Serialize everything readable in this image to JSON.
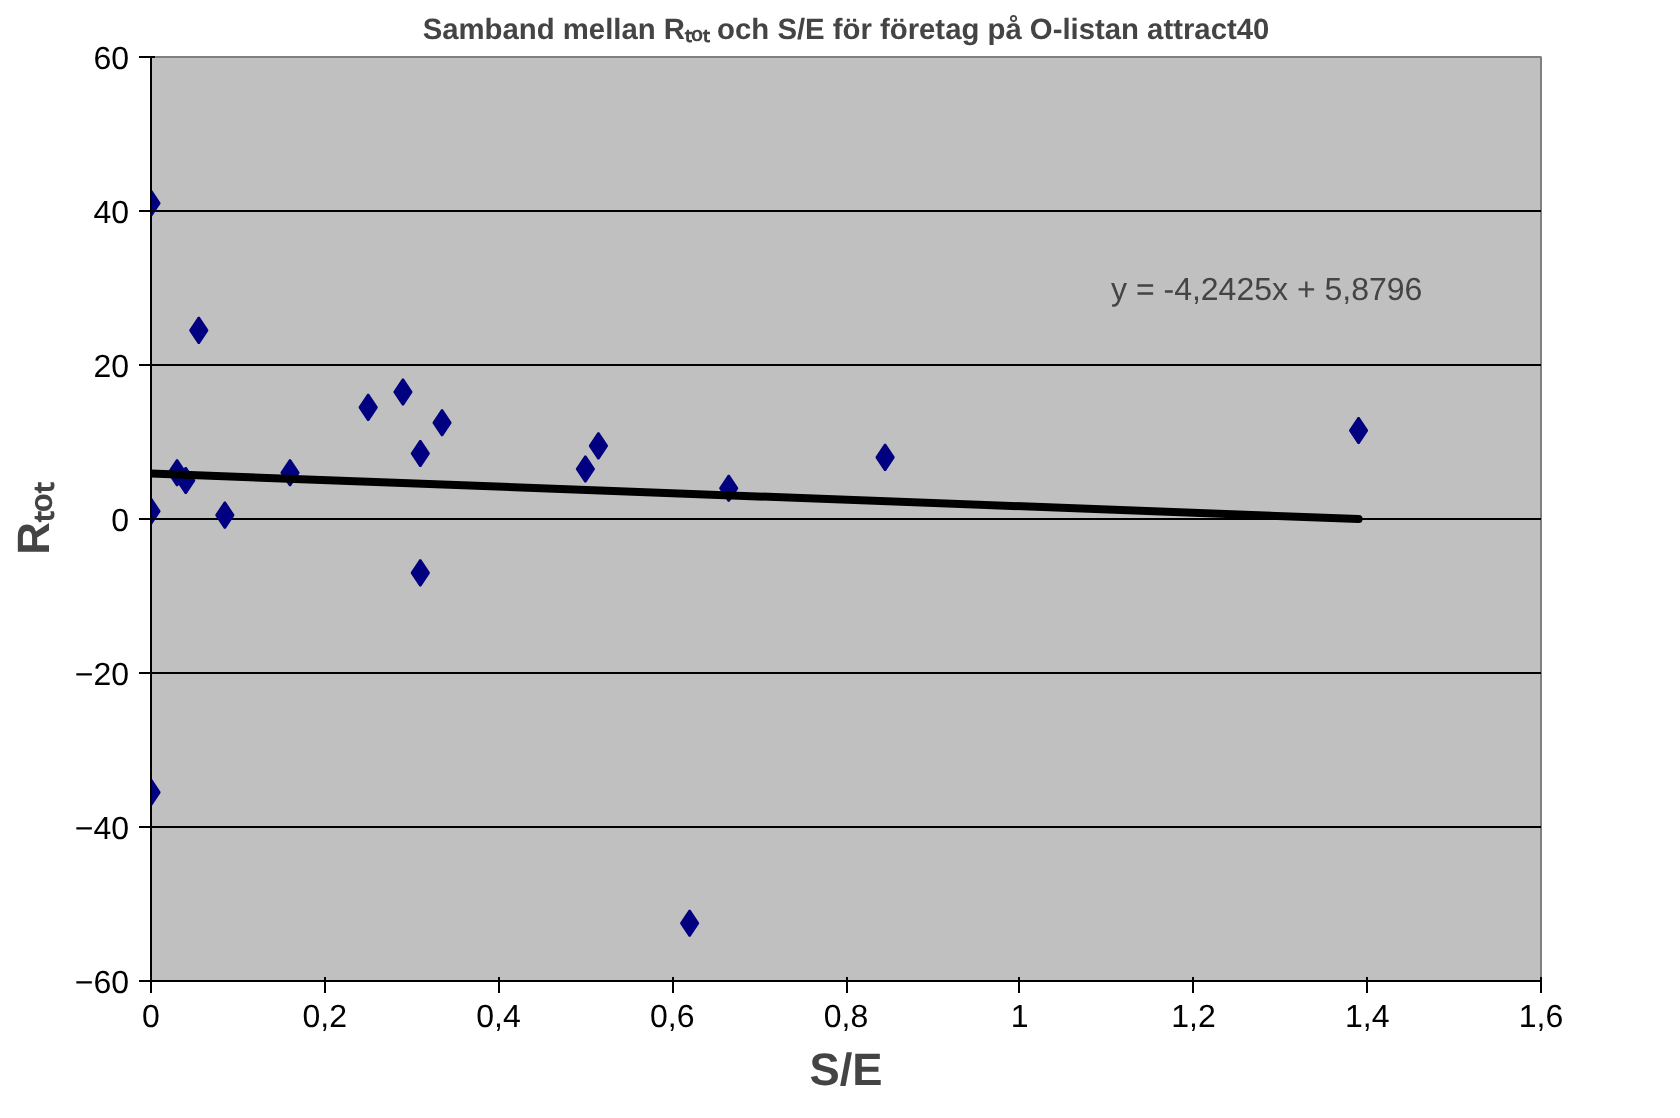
{
  "chart_data": {
    "type": "scatter",
    "title": "Samband mellan Rₜₒₜ och S/E för företag på O-listan attract40",
    "xlabel": "S/E",
    "ylabel": "Rₜₒₜ",
    "xlim": [
      0,
      1.6
    ],
    "xticks": [
      {
        "value": 0,
        "label": "0"
      },
      {
        "value": 0.2,
        "label": "0,2"
      },
      {
        "value": 0.4,
        "label": "0,4"
      },
      {
        "value": 0.6,
        "label": "0,6"
      },
      {
        "value": 0.8,
        "label": "0,8"
      },
      {
        "value": 1,
        "label": "1"
      },
      {
        "value": 1.2,
        "label": "1,2"
      },
      {
        "value": 1.4,
        "label": "1,4"
      },
      {
        "value": 1.6,
        "label": "1,6"
      }
    ],
    "ylim": [
      -60,
      60
    ],
    "yticks": [
      -60,
      -40,
      -20,
      0,
      20,
      40,
      60
    ],
    "grid": "y",
    "series": [
      {
        "marker": "diamond",
        "color": "#000080",
        "x": [
          0,
          0,
          0,
          0.03,
          0.04,
          0.055,
          0.085,
          0.16,
          0.25,
          0.29,
          0.31,
          0.31,
          0.335,
          0.5,
          0.515,
          0.62,
          0.665,
          0.845,
          1.39
        ],
        "values": [
          41,
          1,
          -35.5,
          6,
          5,
          24.5,
          0.5,
          6,
          14.5,
          16.5,
          8.5,
          -7,
          12.5,
          6.5,
          9.5,
          -52.5,
          4,
          8,
          11.5
        ]
      },
      {
        "type": "line",
        "color": "#000000",
        "x": [
          0,
          1.39
        ],
        "values": [
          5.9,
          0.0
        ]
      }
    ],
    "annotations": [
      "y = -4,2425x + 5,8796"
    ]
  }
}
